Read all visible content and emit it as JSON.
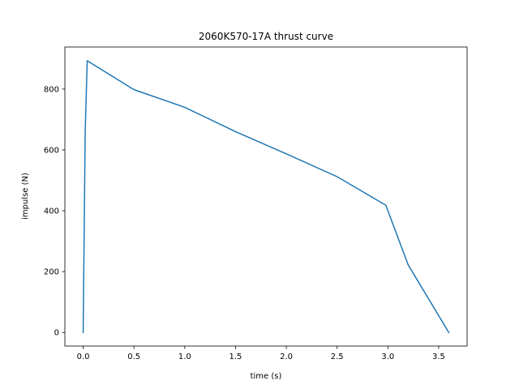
{
  "chart_data": {
    "type": "line",
    "title": "2060K570-17A thrust curve",
    "xlabel": "time (s)",
    "ylabel": "impulse (N)",
    "xlim": [
      -0.18,
      3.78
    ],
    "ylim": [
      -44.7,
      938.2
    ],
    "xticks": [
      0.0,
      0.5,
      1.0,
      1.5,
      2.0,
      2.5,
      3.0,
      3.5
    ],
    "xtick_labels": [
      "0.0",
      "0.5",
      "1.0",
      "1.5",
      "2.0",
      "2.5",
      "3.0",
      "3.5"
    ],
    "yticks": [
      0,
      200,
      400,
      600,
      800
    ],
    "ytick_labels": [
      "0",
      "200",
      "400",
      "600",
      "800"
    ],
    "grid": false,
    "series": [
      {
        "color": "#1f77b4",
        "x": [
          0.0,
          0.02,
          0.04,
          0.5,
          1.0,
          1.5,
          2.0,
          2.5,
          2.98,
          3.2,
          3.6
        ],
        "y": [
          0,
          660,
          893,
          798,
          740,
          660,
          587,
          512,
          418,
          222,
          0
        ]
      }
    ]
  }
}
